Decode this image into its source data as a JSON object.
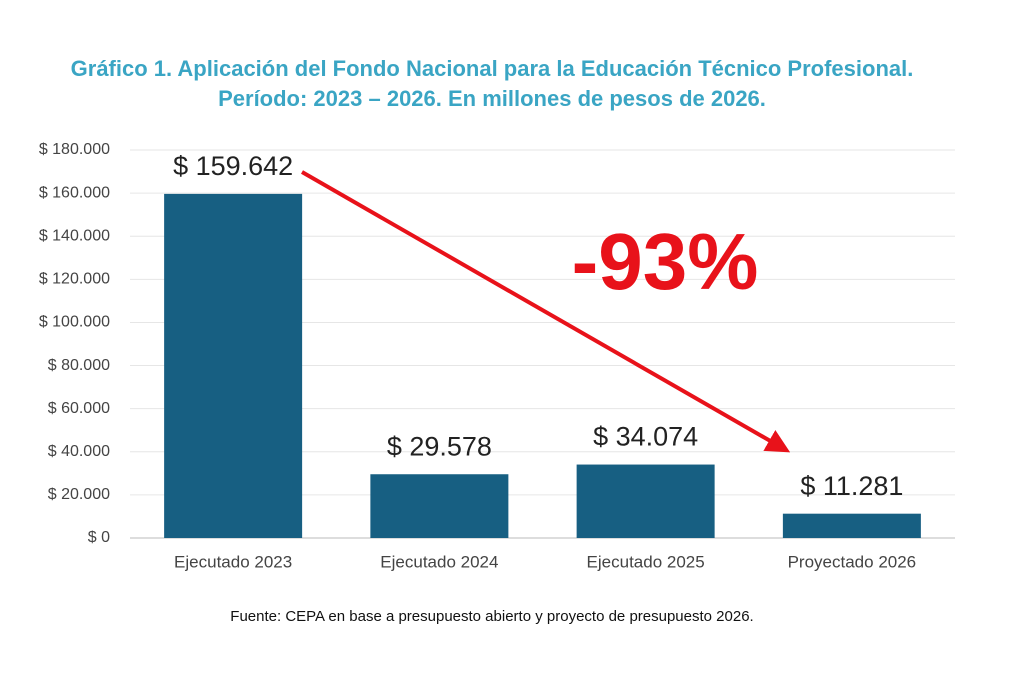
{
  "chart_data": {
    "type": "bar",
    "title": "Gráfico 1. Aplicación del Fondo Nacional para la Educación Técnico Profesional.",
    "subtitle": "Período: 2023 – 2026. En millones de pesos de 2026.",
    "categories": [
      "Ejecutado 2023",
      "Ejecutado 2024",
      "Ejecutado 2025",
      "Proyectado 2026"
    ],
    "values": [
      159642,
      29578,
      34074,
      11281
    ],
    "value_labels": [
      "$ 159.642",
      "$ 29.578",
      "$ 34.074",
      "$ 11.281"
    ],
    "color": "#175f82",
    "ylim": [
      0,
      180000
    ],
    "yticks": [
      {
        "value": 0,
        "label": "$ 0"
      },
      {
        "value": 20000,
        "label": "$ 20.000"
      },
      {
        "value": 40000,
        "label": "$ 40.000"
      },
      {
        "value": 60000,
        "label": "$ 60.000"
      },
      {
        "value": 80000,
        "label": "$ 80.000"
      },
      {
        "value": 100000,
        "label": "$ 100.000"
      },
      {
        "value": 120000,
        "label": "$ 120.000"
      },
      {
        "value": 140000,
        "label": "$ 140.000"
      },
      {
        "value": 160000,
        "label": "$ 160.000"
      },
      {
        "value": 180000,
        "label": "$ 180.000"
      }
    ],
    "grid": true,
    "annotation": "-93%",
    "source": "Fuente: CEPA en base a presupuesto abierto y proyecto de presupuesto 2026."
  }
}
